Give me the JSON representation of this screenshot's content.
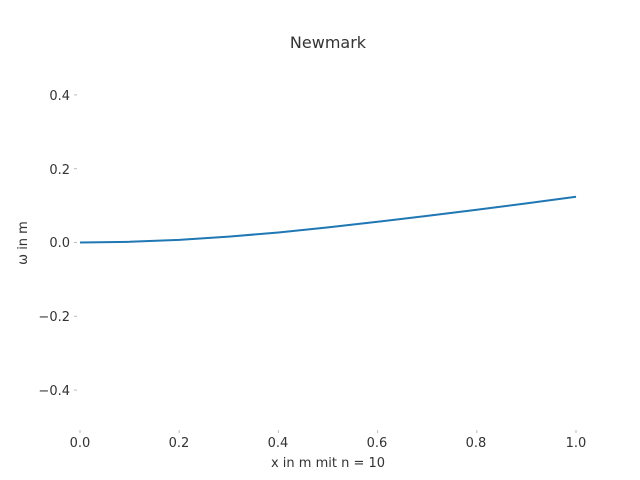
{
  "chart_data": {
    "type": "line",
    "title": "Newmark",
    "xlabel": "x in m mit  n = 10",
    "ylabel": "ω in m",
    "xlim": [
      0.0,
      1.0
    ],
    "ylim": [
      -0.5,
      0.5
    ],
    "xticks": [
      "0.0",
      "0.2",
      "0.4",
      "0.6",
      "0.8",
      "1.0"
    ],
    "yticks": [
      "0.4",
      "0.2",
      "0.0",
      "−0.2",
      "−0.4"
    ],
    "grid": false,
    "series": [
      {
        "color": "#1f77b4",
        "x": [
          0.0,
          0.1,
          0.2,
          0.3,
          0.4,
          0.5,
          0.6,
          0.7,
          0.8,
          0.9,
          1.0
        ],
        "y": [
          0.0,
          0.002,
          0.007,
          0.016,
          0.027,
          0.041,
          0.056,
          0.072,
          0.089,
          0.106,
          0.124
        ]
      }
    ]
  }
}
